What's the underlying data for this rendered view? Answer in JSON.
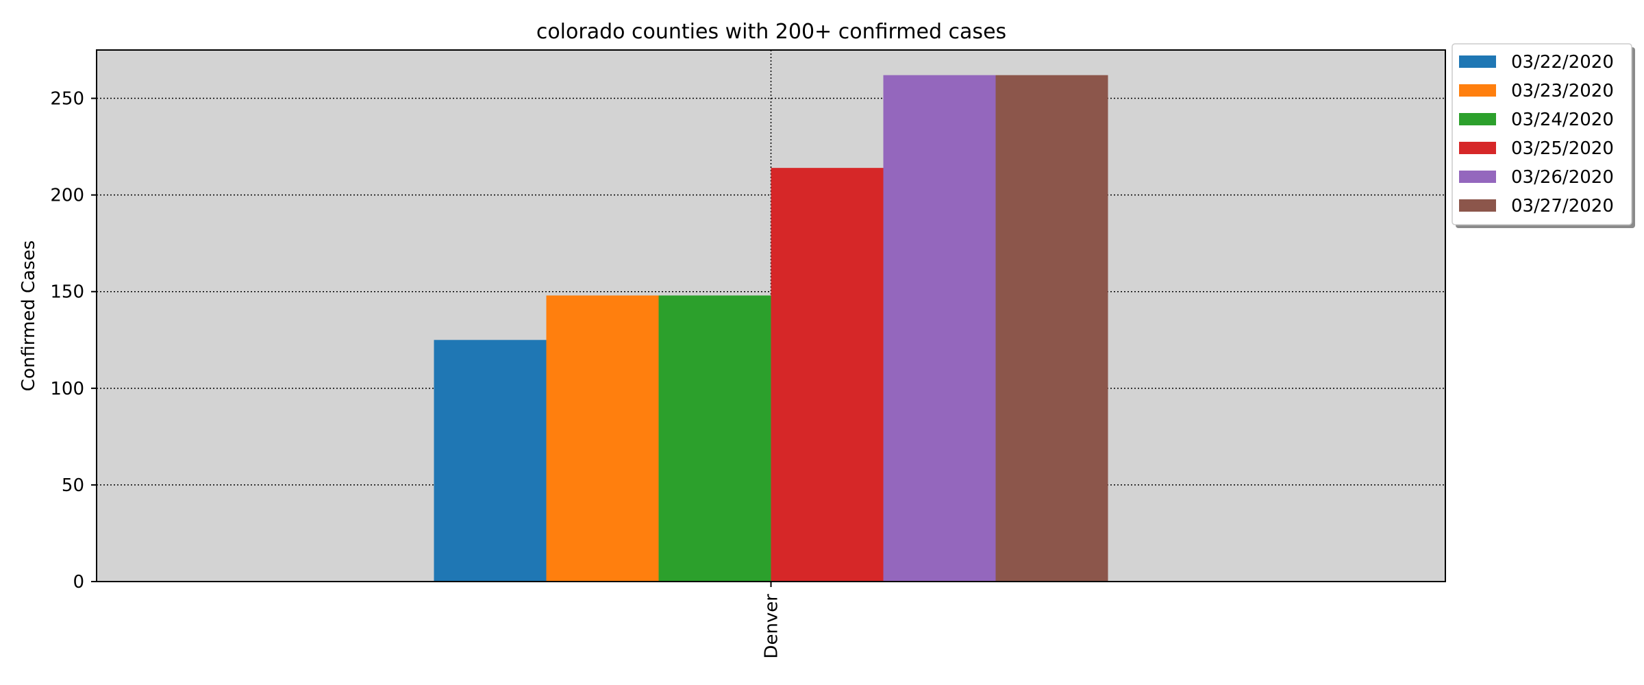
{
  "chart_data": {
    "type": "bar",
    "title": "colorado counties with 200+ confirmed cases",
    "xlabel": "",
    "ylabel": "Confirmed Cases",
    "categories": [
      "Denver"
    ],
    "ylim": [
      0,
      275
    ],
    "yticks": [
      0,
      50,
      100,
      150,
      200,
      250
    ],
    "grid": true,
    "legend_position": "outside-top-right",
    "series": [
      {
        "name": "03/22/2020",
        "color": "#1f77b4",
        "values": [
          125
        ]
      },
      {
        "name": "03/23/2020",
        "color": "#ff7f0e",
        "values": [
          148
        ]
      },
      {
        "name": "03/24/2020",
        "color": "#2ca02c",
        "values": [
          148
        ]
      },
      {
        "name": "03/25/2020",
        "color": "#d62728",
        "values": [
          214
        ]
      },
      {
        "name": "03/26/2020",
        "color": "#9467bd",
        "values": [
          262
        ]
      },
      {
        "name": "03/27/2020",
        "color": "#8c564b",
        "values": [
          262
        ]
      }
    ]
  }
}
